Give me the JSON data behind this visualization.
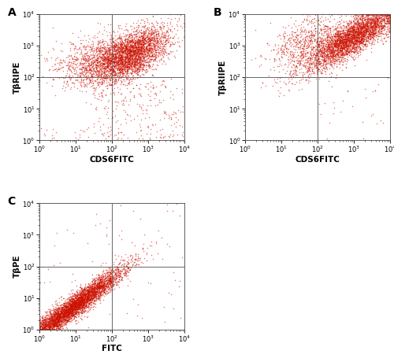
{
  "panels": [
    {
      "label": "A",
      "xlabel": "CDS6FITC",
      "ylabel": "TβRIPE",
      "gate_x": 100,
      "gate_y": 100
    },
    {
      "label": "B",
      "xlabel": "CDS6FITC",
      "ylabel": "TβRIIPE",
      "gate_x": 100,
      "gate_y": 100
    },
    {
      "label": "C",
      "xlabel": "FITC",
      "ylabel": "TβPE",
      "gate_x": 100,
      "gate_y": 100
    }
  ],
  "dot_color": "#cc1100",
  "dot_alpha": 0.55,
  "dot_size": 1.2,
  "gate_color": "#666666",
  "gate_lw": 0.7,
  "xlim": [
    1,
    10000
  ],
  "ylim": [
    1,
    10000
  ],
  "bg_color": "#ffffff",
  "axis_label_fontsize": 7.5,
  "tick_fontsize": 6,
  "panel_label_fontsize": 10
}
